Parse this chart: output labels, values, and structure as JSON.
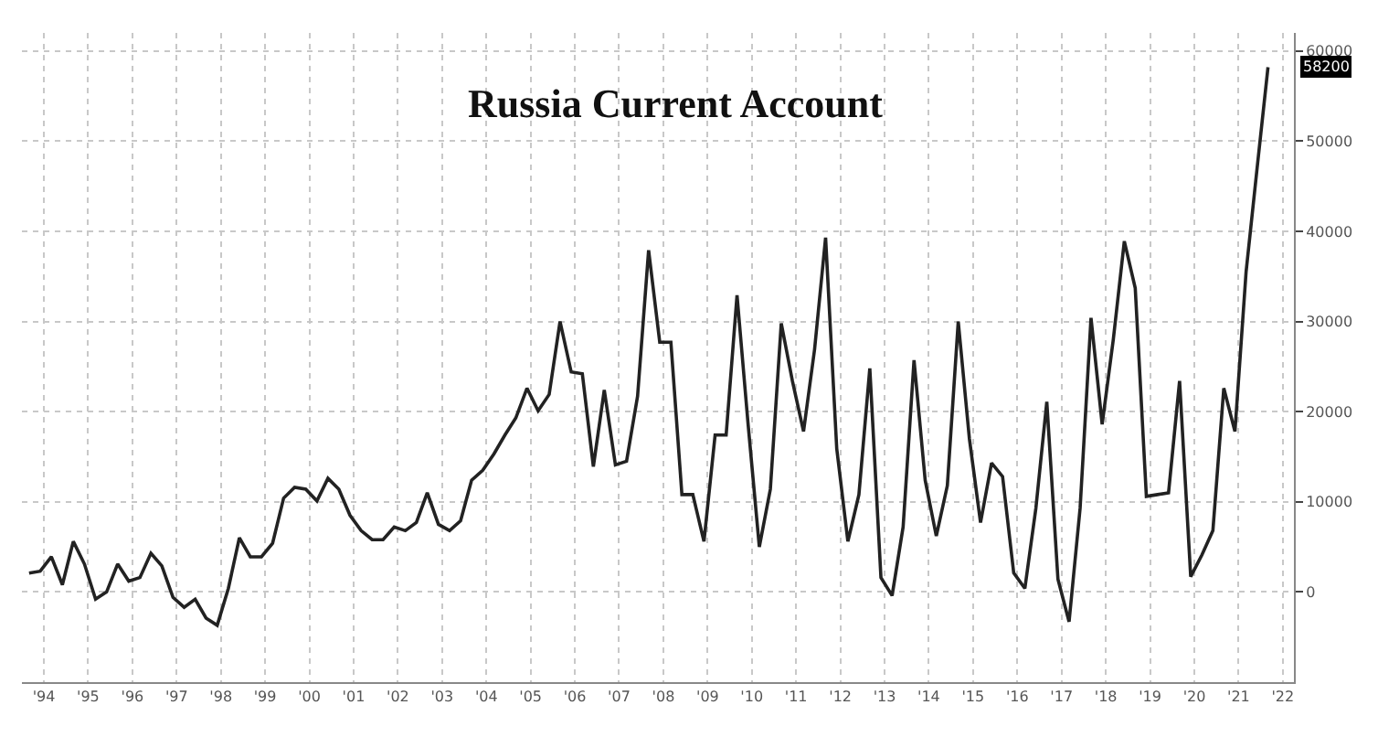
{
  "chart_data": {
    "type": "line",
    "title": "Russia Current Account",
    "x": [
      "1994-03",
      "1994-06",
      "1994-09",
      "1994-12",
      "1995-03",
      "1995-06",
      "1995-09",
      "1995-12",
      "1996-03",
      "1996-06",
      "1996-09",
      "1996-12",
      "1997-03",
      "1997-06",
      "1997-09",
      "1997-12",
      "1998-03",
      "1998-06",
      "1998-09",
      "1998-12",
      "1999-03",
      "1999-06",
      "1999-09",
      "1999-12",
      "2000-03",
      "2000-06",
      "2000-09",
      "2000-12",
      "2001-03",
      "2001-06",
      "2001-09",
      "2001-12",
      "2002-03",
      "2002-06",
      "2002-09",
      "2002-12",
      "2003-03",
      "2003-06",
      "2003-09",
      "2003-12",
      "2004-03",
      "2004-06",
      "2004-09",
      "2004-12",
      "2005-03",
      "2005-06",
      "2005-09",
      "2005-12",
      "2006-03",
      "2006-06",
      "2006-09",
      "2006-12",
      "2007-03",
      "2007-06",
      "2007-09",
      "2007-12",
      "2008-03",
      "2008-06",
      "2008-09",
      "2008-12",
      "2009-03",
      "2009-06",
      "2009-09",
      "2009-12",
      "2010-03",
      "2010-06",
      "2010-09",
      "2010-12",
      "2011-03",
      "2011-06",
      "2011-09",
      "2011-12",
      "2012-03",
      "2012-06",
      "2012-09",
      "2012-12",
      "2013-03",
      "2013-06",
      "2013-09",
      "2013-12",
      "2014-03",
      "2014-06",
      "2014-09",
      "2014-12",
      "2015-03",
      "2015-06",
      "2015-09",
      "2015-12",
      "2016-03",
      "2016-06",
      "2016-09",
      "2016-12",
      "2017-03",
      "2017-06",
      "2017-09",
      "2017-12",
      "2018-03",
      "2018-06",
      "2018-09",
      "2018-12",
      "2019-03",
      "2019-06",
      "2019-09",
      "2019-12",
      "2020-03",
      "2020-06",
      "2020-09",
      "2020-12",
      "2021-03",
      "2021-06",
      "2021-09",
      "2021-12",
      "2022-03"
    ],
    "series": [
      {
        "color": "#222222",
        "values": [
          2100,
          2300,
          3900,
          800,
          5600,
          3100,
          -800,
          0,
          3100,
          1200,
          1600,
          4300,
          2900,
          -600,
          -1700,
          -800,
          -2900,
          -3700,
          400,
          6000,
          3900,
          3900,
          5400,
          10400,
          11600,
          11400,
          10100,
          12600,
          11400,
          8500,
          6800,
          5800,
          5800,
          7200,
          6800,
          7700,
          11000,
          7500,
          6800,
          7900,
          12400,
          13500,
          15300,
          17400,
          19300,
          22600,
          20100,
          21900,
          30000,
          24400,
          24200,
          13900,
          22400,
          14100,
          14500,
          21700,
          37900,
          27700,
          27700,
          10800,
          10800,
          5600,
          17400,
          17400,
          32900,
          18500,
          5000,
          11400,
          29800,
          23400,
          17800,
          26900,
          39300,
          15900,
          5600,
          10800,
          24800,
          1600,
          -400,
          7200,
          25700,
          12400,
          6200,
          11800,
          30000,
          17000,
          7700,
          14300,
          12800,
          2100,
          400,
          9300,
          21100,
          1400,
          -3300,
          9300,
          30400,
          18600,
          28000,
          38900,
          33700,
          10600,
          10800,
          11000,
          23400,
          1700,
          4100,
          6800,
          22600,
          17800,
          35500,
          47000,
          58200
        ]
      }
    ],
    "xlim": [
      "1994-01",
      "2022-10"
    ],
    "xticks": [
      {
        "value": "1994-07",
        "label": "'94"
      },
      {
        "value": "1995-07",
        "label": "'95"
      },
      {
        "value": "1996-07",
        "label": "'96"
      },
      {
        "value": "1997-07",
        "label": "'97"
      },
      {
        "value": "1998-07",
        "label": "'98"
      },
      {
        "value": "1999-07",
        "label": "'99"
      },
      {
        "value": "2000-07",
        "label": "'00"
      },
      {
        "value": "2001-07",
        "label": "'01"
      },
      {
        "value": "2002-07",
        "label": "'02"
      },
      {
        "value": "2003-07",
        "label": "'03"
      },
      {
        "value": "2004-07",
        "label": "'04"
      },
      {
        "value": "2005-07",
        "label": "'05"
      },
      {
        "value": "2006-07",
        "label": "'06"
      },
      {
        "value": "2007-07",
        "label": "'07"
      },
      {
        "value": "2008-07",
        "label": "'08"
      },
      {
        "value": "2009-07",
        "label": "'09"
      },
      {
        "value": "2010-07",
        "label": "'10"
      },
      {
        "value": "2011-07",
        "label": "'11"
      },
      {
        "value": "2012-07",
        "label": "'12"
      },
      {
        "value": "2013-07",
        "label": "'13"
      },
      {
        "value": "2014-07",
        "label": "'14"
      },
      {
        "value": "2015-07",
        "label": "'15"
      },
      {
        "value": "2016-07",
        "label": "'16"
      },
      {
        "value": "2017-07",
        "label": "'17"
      },
      {
        "value": "2018-07",
        "label": "'18"
      },
      {
        "value": "2019-07",
        "label": "'19"
      },
      {
        "value": "2020-07",
        "label": "'20"
      },
      {
        "value": "2021-07",
        "label": "'21"
      },
      {
        "value": "2022-07",
        "label": "'22"
      }
    ],
    "ylim": [
      -10000,
      62000
    ],
    "yticks": [
      0,
      10000,
      20000,
      30000,
      40000,
      50000,
      60000
    ],
    "annotations": [
      {
        "text": "58200",
        "x": "2022-03",
        "y": 58200
      }
    ],
    "grid": true,
    "marker": "none",
    "line_style": "solid"
  }
}
